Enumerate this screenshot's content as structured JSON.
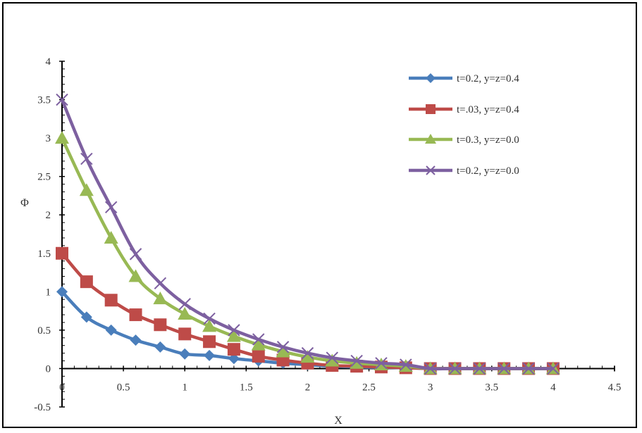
{
  "chart_data": {
    "type": "line",
    "title": "",
    "xlabel": "X",
    "ylabel": "Φ",
    "xlim": [
      0,
      4.5
    ],
    "ylim": [
      -0.5,
      4
    ],
    "x_ticks": [
      "0",
      "0.5",
      "1",
      "1.5",
      "2",
      "2.5",
      "3",
      "3.5",
      "4",
      "4.5"
    ],
    "y_ticks": [
      "-0.5",
      "0",
      "0.5",
      "1",
      "1.5",
      "2",
      "2.5",
      "3",
      "3.5",
      "4"
    ],
    "grid": false,
    "legend_position": "top-right",
    "x": [
      0,
      0.2,
      0.4,
      0.6,
      0.8,
      1.0,
      1.2,
      1.4,
      1.6,
      1.8,
      2.0,
      2.2,
      2.4,
      2.6,
      2.8,
      3.0,
      3.2,
      3.4,
      3.6,
      3.8,
      4.0
    ],
    "series": [
      {
        "name": "t=0.2, y=z=0.4",
        "color": "#4A7EBB",
        "marker": "diamond",
        "values": [
          1.0,
          0.67,
          0.5,
          0.37,
          0.28,
          0.19,
          0.17,
          0.13,
          0.1,
          0.07,
          0.05,
          0.03,
          0.02,
          0.015,
          0.01,
          0.0,
          0.0,
          0.0,
          0.0,
          0.0,
          0.0
        ]
      },
      {
        "name": "t=.03, y=z=0.4",
        "color": "#BE4B48",
        "marker": "square",
        "values": [
          1.5,
          1.13,
          0.89,
          0.7,
          0.57,
          0.45,
          0.35,
          0.25,
          0.16,
          0.11,
          0.07,
          0.04,
          0.03,
          0.02,
          0.01,
          0.0,
          0.0,
          0.0,
          0.0,
          0.0,
          0.0
        ]
      },
      {
        "name": "t=0.3, y=z=0.0",
        "color": "#98B954",
        "marker": "triangle",
        "values": [
          3.0,
          2.32,
          1.7,
          1.2,
          0.91,
          0.71,
          0.55,
          0.42,
          0.31,
          0.22,
          0.15,
          0.1,
          0.07,
          0.05,
          0.03,
          0.0,
          0.0,
          0.0,
          0.0,
          0.0,
          0.0
        ]
      },
      {
        "name": "t=0.2, y=z=0.0",
        "color": "#7D60A0",
        "marker": "x",
        "values": [
          3.5,
          2.73,
          2.1,
          1.49,
          1.11,
          0.84,
          0.65,
          0.5,
          0.38,
          0.28,
          0.2,
          0.14,
          0.1,
          0.07,
          0.05,
          0.0,
          0.0,
          0.0,
          0.0,
          0.0,
          0.0
        ]
      }
    ]
  }
}
